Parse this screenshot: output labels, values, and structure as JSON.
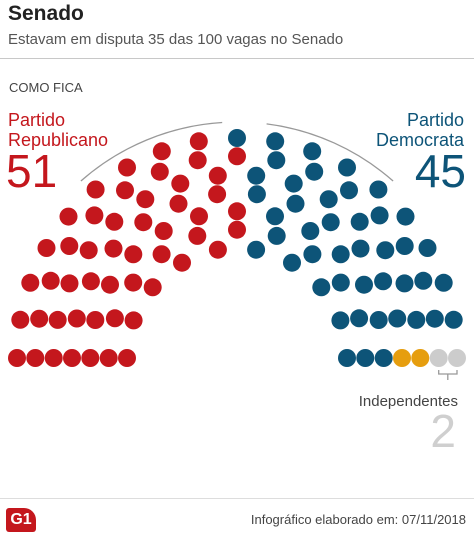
{
  "header": {
    "title": "Senado",
    "subtitle": "Estavam em disputa 35 das 100 vagas no Senado"
  },
  "section_label": "COMO FICA",
  "parties": {
    "republicano": {
      "line1": "Partido",
      "line2": "Republicano",
      "count": "51",
      "color": "#c4171d"
    },
    "democrata": {
      "line1": "Partido",
      "line2": "Democrata",
      "count": "45",
      "color": "#0d5478"
    },
    "independentes": {
      "name": "Independentes",
      "count": "2",
      "color": "#e69e0f"
    }
  },
  "chart_data": {
    "type": "parliament",
    "total_seats": 100,
    "series": [
      {
        "name": "Partido Republicano",
        "value": 51,
        "color": "#c4171d"
      },
      {
        "name": "Partido Democrata",
        "value": 45,
        "color": "#0d5478"
      },
      {
        "name": "Independentes",
        "value": 2,
        "color": "#e69e0f"
      }
    ]
  },
  "footer": {
    "logo_text": "G1",
    "credit": "Infográfico elaborado em: 07/11/2018"
  }
}
